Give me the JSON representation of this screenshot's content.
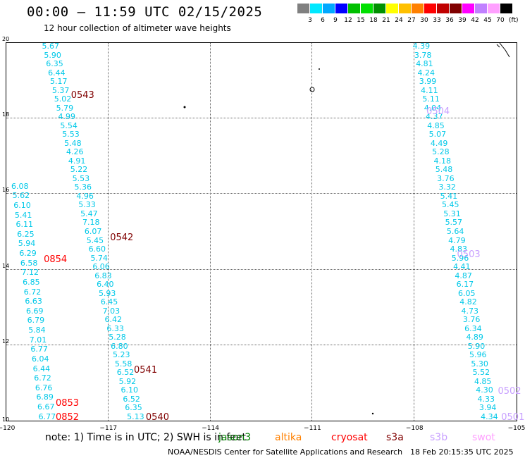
{
  "header": {
    "title": "00:00 – 11:59 UTC 02/15/2025",
    "subtitle": "12 hour collection of altimeter wave heights"
  },
  "colorbar": {
    "colors": [
      "#808080",
      "#00e8ff",
      "#00a8ff",
      "#0000ff",
      "#00c000",
      "#00e000",
      "#009000",
      "#ffff00",
      "#ffc000",
      "#ff8000",
      "#ff0000",
      "#c00000",
      "#800000",
      "#ff00ff",
      "#c080ff",
      "#ffa0ff",
      "#000000"
    ],
    "labels": [
      "3",
      "6",
      "9",
      "12",
      "15",
      "18",
      "21",
      "24",
      "27",
      "30",
      "33",
      "36",
      "39",
      "42",
      "45",
      "70"
    ],
    "unit": "(ft)"
  },
  "axes": {
    "lat_labels": [
      "20",
      "18",
      "16",
      "14",
      "12",
      "10"
    ],
    "lat_values": [
      20,
      18,
      16,
      14,
      12,
      10
    ],
    "lon_labels": [
      "−120",
      "−117",
      "−114",
      "−111",
      "−108",
      "−105"
    ],
    "lon_values": [
      -120,
      -117,
      -114,
      -111,
      -108,
      -105
    ],
    "lat_range": [
      10,
      20
    ],
    "lon_range": [
      -120,
      -105
    ]
  },
  "tracks": [
    {
      "color": "#00c8e8",
      "start": [
        -118.7,
        19.9
      ],
      "end": [
        -116.2,
        10.1
      ],
      "values": [
        "5.67",
        "5.90",
        "6.35",
        "6.44",
        "5.17",
        "5.37",
        "5.02",
        "5.79",
        "4.99",
        "5.54",
        "5.53",
        "5.48",
        "4.26",
        "4.91",
        "5.22",
        "5.53",
        "5.36",
        "4.96",
        "5.33",
        "5.47",
        "7.18",
        "6.07",
        "5.45",
        "6.60",
        "5.74",
        "6.06",
        "6.83",
        "6.40",
        "5.93",
        "6.45",
        "7.03",
        "6.42",
        "6.33",
        "5.28",
        "6.80",
        "5.23",
        "5.58",
        "6.52",
        "5.92",
        "6.10",
        "6.52",
        "6.35",
        "5.13"
      ]
    },
    {
      "color": "#00c8e8",
      "start": [
        -119.6,
        16.2
      ],
      "end": [
        -118.8,
        10.1
      ],
      "values": [
        "6.08",
        "5.62",
        "6.10",
        "5.41",
        "6.11",
        "6.25",
        "5.94",
        "6.29",
        "6.58",
        "7.12",
        "6.85",
        "6.72",
        "6.63",
        "6.69",
        "6.79",
        "5.84",
        "7.01",
        "6.77",
        "6.04",
        "6.44",
        "6.72",
        "6.76",
        "6.89",
        "6.67",
        "6.77"
      ]
    },
    {
      "color": "#00c8e8",
      "start": [
        -107.8,
        19.9
      ],
      "end": [
        -105.8,
        10.1
      ],
      "values": [
        "4.39",
        "3.78",
        "4.81",
        "4.24",
        "3.99",
        "4.11",
        "5.11",
        "4.04",
        "4.37",
        "4.85",
        "5.07",
        "4.49",
        "5.28",
        "4.18",
        "5.48",
        "3.76",
        "3.32",
        "5.41",
        "5.45",
        "5.31",
        "5.57",
        "5.64",
        "4.79",
        "4.83",
        "5.96",
        "4.41",
        "4.87",
        "6.17",
        "6.05",
        "4.82",
        "4.73",
        "3.76",
        "6.34",
        "4.89",
        "5.90",
        "5.96",
        "5.30",
        "5.52",
        "4.85",
        "4.30",
        "4.33",
        "3.94",
        "4.34"
      ]
    }
  ],
  "pass_labels": [
    {
      "text": "0543",
      "color": "#800000",
      "lon": -118.1,
      "lat": 18.6
    },
    {
      "text": "0542",
      "color": "#800000",
      "lon": -116.95,
      "lat": 14.84
    },
    {
      "text": "0854",
      "color": "#ff0000",
      "lon": -118.9,
      "lat": 14.26
    },
    {
      "text": "0541",
      "color": "#800000",
      "lon": -116.25,
      "lat": 11.33
    },
    {
      "text": "0853",
      "color": "#ff0000",
      "lon": -118.55,
      "lat": 10.45
    },
    {
      "text": "0852",
      "color": "#ff0000",
      "lon": -118.55,
      "lat": 10.07
    },
    {
      "text": "0540",
      "color": "#800000",
      "lon": -115.9,
      "lat": 10.07
    },
    {
      "text": "0504",
      "color": "#c8a0ff",
      "lon": -107.65,
      "lat": 18.17
    },
    {
      "text": "0503",
      "color": "#c8a0ff",
      "lon": -106.75,
      "lat": 14.38
    },
    {
      "text": "0502",
      "color": "#c8a0ff",
      "lon": -105.55,
      "lat": 10.77
    },
    {
      "text": "0501",
      "color": "#c8a0ff",
      "lon": -105.45,
      "lat": 10.07
    }
  ],
  "footer": {
    "note": "note:  1) Time is in UTC;  2) SWH is in feet",
    "legend": [
      {
        "label": "jason3",
        "color": "#008000"
      },
      {
        "label": "altika",
        "color": "#ff8000"
      },
      {
        "label": "cryosat",
        "color": "#ff0000"
      },
      {
        "label": "s3a",
        "color": "#800000"
      },
      {
        "label": "s3b",
        "color": "#c8a0ff"
      },
      {
        "label": "swot",
        "color": "#ffa0ff"
      }
    ],
    "credit": "NOAA/NESDIS Center for Satellite Applications and Research",
    "timestamp": "18 Feb 20:15:35 UTC 2025"
  }
}
